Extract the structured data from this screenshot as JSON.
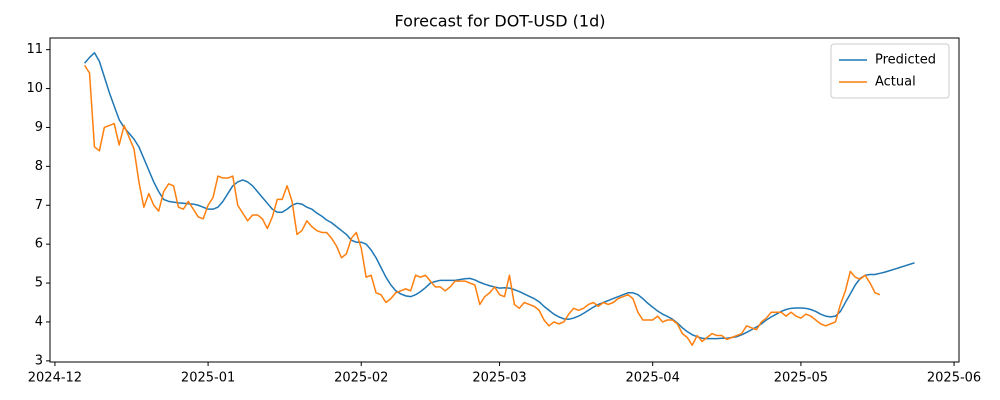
{
  "chart_data": {
    "type": "line",
    "title": "Forecast for DOT-USD (1d)",
    "x": [
      "2024-12-07",
      "2024-12-08",
      "2024-12-09",
      "2024-12-10",
      "2024-12-11",
      "2024-12-12",
      "2024-12-13",
      "2024-12-14",
      "2024-12-15",
      "2024-12-16",
      "2024-12-17",
      "2024-12-18",
      "2024-12-19",
      "2024-12-20",
      "2024-12-21",
      "2024-12-22",
      "2024-12-23",
      "2024-12-24",
      "2024-12-25",
      "2024-12-26",
      "2024-12-27",
      "2024-12-28",
      "2024-12-29",
      "2024-12-30",
      "2024-12-31",
      "2025-01-01",
      "2025-01-02",
      "2025-01-03",
      "2025-01-04",
      "2025-01-05",
      "2025-01-06",
      "2025-01-07",
      "2025-01-08",
      "2025-01-09",
      "2025-01-10",
      "2025-01-11",
      "2025-01-12",
      "2025-01-13",
      "2025-01-14",
      "2025-01-15",
      "2025-01-16",
      "2025-01-17",
      "2025-01-18",
      "2025-01-19",
      "2025-01-20",
      "2025-01-21",
      "2025-01-22",
      "2025-01-23",
      "2025-01-24",
      "2025-01-25",
      "2025-01-26",
      "2025-01-27",
      "2025-01-28",
      "2025-01-29",
      "2025-01-30",
      "2025-01-31",
      "2025-02-01",
      "2025-02-02",
      "2025-02-03",
      "2025-02-04",
      "2025-02-05",
      "2025-02-06",
      "2025-02-07",
      "2025-02-08",
      "2025-02-09",
      "2025-02-10",
      "2025-02-11",
      "2025-02-12",
      "2025-02-13",
      "2025-02-14",
      "2025-02-15",
      "2025-02-16",
      "2025-02-17",
      "2025-02-18",
      "2025-02-19",
      "2025-02-20",
      "2025-02-21",
      "2025-02-22",
      "2025-02-23",
      "2025-02-24",
      "2025-02-25",
      "2025-02-26",
      "2025-02-27",
      "2025-02-28",
      "2025-03-01",
      "2025-03-02",
      "2025-03-03",
      "2025-03-04",
      "2025-03-05",
      "2025-03-06",
      "2025-03-07",
      "2025-03-08",
      "2025-03-09",
      "2025-03-10",
      "2025-03-11",
      "2025-03-12",
      "2025-03-13",
      "2025-03-14",
      "2025-03-15",
      "2025-03-16",
      "2025-03-17",
      "2025-03-18",
      "2025-03-19",
      "2025-03-20",
      "2025-03-21",
      "2025-03-22",
      "2025-03-23",
      "2025-03-24",
      "2025-03-25",
      "2025-03-26",
      "2025-03-27",
      "2025-03-28",
      "2025-03-29",
      "2025-03-30",
      "2025-03-31",
      "2025-04-01",
      "2025-04-02",
      "2025-04-03",
      "2025-04-04",
      "2025-04-05",
      "2025-04-06",
      "2025-04-07",
      "2025-04-08",
      "2025-04-09",
      "2025-04-10",
      "2025-04-11",
      "2025-04-12",
      "2025-04-13",
      "2025-04-14",
      "2025-04-15",
      "2025-04-16",
      "2025-04-17",
      "2025-04-18",
      "2025-04-19",
      "2025-04-20",
      "2025-04-21",
      "2025-04-22",
      "2025-04-23",
      "2025-04-24",
      "2025-04-25",
      "2025-04-26",
      "2025-04-27",
      "2025-04-28",
      "2025-04-29",
      "2025-04-30",
      "2025-05-01",
      "2025-05-02",
      "2025-05-03",
      "2025-05-04",
      "2025-05-05",
      "2025-05-06",
      "2025-05-07",
      "2025-05-08",
      "2025-05-09",
      "2025-05-10",
      "2025-05-11",
      "2025-05-12",
      "2025-05-13",
      "2025-05-14",
      "2025-05-15",
      "2025-05-16",
      "2025-05-17",
      "2025-05-18",
      "2025-05-19",
      "2025-05-20",
      "2025-05-21",
      "2025-05-22",
      "2025-05-23",
      "2025-05-24"
    ],
    "series": [
      {
        "name": "Predicted",
        "color": "#1f77b4",
        "values": [
          10.65,
          10.8,
          10.92,
          10.7,
          10.3,
          9.9,
          9.55,
          9.2,
          9.0,
          8.85,
          8.7,
          8.5,
          8.2,
          7.9,
          7.6,
          7.35,
          7.15,
          7.1,
          7.08,
          7.06,
          7.05,
          7.04,
          7.03,
          7.0,
          6.95,
          6.9,
          6.9,
          6.95,
          7.1,
          7.3,
          7.5,
          7.6,
          7.65,
          7.6,
          7.5,
          7.35,
          7.2,
          7.05,
          6.9,
          6.82,
          6.82,
          6.9,
          7.0,
          7.05,
          7.03,
          6.95,
          6.9,
          6.8,
          6.72,
          6.62,
          6.55,
          6.45,
          6.35,
          6.25,
          6.1,
          6.05,
          6.05,
          6.0,
          5.85,
          5.65,
          5.4,
          5.15,
          4.95,
          4.8,
          4.72,
          4.67,
          4.65,
          4.7,
          4.78,
          4.88,
          5.0,
          5.04,
          5.07,
          5.07,
          5.07,
          5.07,
          5.09,
          5.11,
          5.12,
          5.08,
          5.02,
          4.97,
          4.93,
          4.9,
          4.87,
          4.88,
          4.87,
          4.83,
          4.78,
          4.72,
          4.66,
          4.6,
          4.52,
          4.4,
          4.3,
          4.2,
          4.13,
          4.08,
          4.07,
          4.1,
          4.15,
          4.22,
          4.3,
          4.38,
          4.45,
          4.5,
          4.55,
          4.6,
          4.65,
          4.7,
          4.75,
          4.75,
          4.7,
          4.6,
          4.48,
          4.38,
          4.28,
          4.2,
          4.14,
          4.07,
          3.97,
          3.85,
          3.75,
          3.67,
          3.62,
          3.58,
          3.57,
          3.57,
          3.57,
          3.58,
          3.58,
          3.6,
          3.62,
          3.67,
          3.73,
          3.8,
          3.87,
          3.95,
          4.05,
          4.13,
          4.2,
          4.27,
          4.32,
          4.35,
          4.36,
          4.36,
          4.35,
          4.32,
          4.27,
          4.2,
          4.15,
          4.13,
          4.15,
          4.27,
          4.5,
          4.72,
          4.95,
          5.12,
          5.2,
          5.22,
          5.22,
          5.25,
          5.28,
          5.32,
          5.36,
          5.4,
          5.44,
          5.48,
          5.52
        ]
      },
      {
        "name": "Actual",
        "color": "#ff7f0e",
        "values": [
          10.6,
          10.4,
          8.5,
          8.4,
          9.0,
          9.05,
          9.1,
          8.55,
          9.05,
          8.75,
          8.45,
          7.6,
          6.95,
          7.3,
          7.0,
          6.85,
          7.35,
          7.55,
          7.5,
          6.95,
          6.9,
          7.1,
          6.9,
          6.7,
          6.65,
          7.0,
          7.2,
          7.75,
          7.7,
          7.7,
          7.75,
          7.0,
          6.8,
          6.6,
          6.75,
          6.75,
          6.65,
          6.4,
          6.7,
          7.15,
          7.15,
          7.5,
          7.1,
          6.25,
          6.35,
          6.6,
          6.45,
          6.35,
          6.3,
          6.3,
          6.15,
          5.95,
          5.65,
          5.75,
          6.15,
          6.3,
          5.9,
          5.15,
          5.2,
          4.75,
          4.7,
          4.5,
          4.6,
          4.75,
          4.8,
          4.85,
          4.8,
          5.2,
          5.15,
          5.2,
          5.05,
          4.9,
          4.9,
          4.8,
          4.9,
          5.05,
          5.05,
          5.05,
          5.0,
          4.95,
          4.45,
          4.65,
          4.75,
          4.9,
          4.7,
          4.65,
          5.2,
          4.45,
          4.35,
          4.5,
          4.45,
          4.4,
          4.3,
          4.05,
          3.9,
          4.0,
          3.95,
          4.0,
          4.2,
          4.35,
          4.3,
          4.35,
          4.45,
          4.5,
          4.4,
          4.5,
          4.45,
          4.5,
          4.6,
          4.65,
          4.7,
          4.6,
          4.25,
          4.05,
          4.05,
          4.05,
          4.15,
          4.0,
          4.05,
          4.05,
          3.95,
          3.7,
          3.6,
          3.4,
          3.65,
          3.5,
          3.6,
          3.7,
          3.65,
          3.65,
          3.55,
          3.6,
          3.65,
          3.7,
          3.9,
          3.85,
          3.8,
          4.0,
          4.1,
          4.25,
          4.25,
          4.25,
          4.15,
          4.25,
          4.15,
          4.1,
          4.2,
          4.15,
          4.05,
          3.95,
          3.9,
          3.95,
          4.0,
          4.45,
          4.8,
          5.3,
          5.15,
          5.1,
          5.2,
          5.0,
          4.75,
          4.7,
          null,
          null,
          null,
          null,
          null,
          null,
          null
        ]
      }
    ],
    "xlim": [
      "2024-11-30",
      "2025-06-02"
    ],
    "xticks": [
      {
        "value": "2024-12-01",
        "label": "2024-12"
      },
      {
        "value": "2025-01-01",
        "label": "2025-01"
      },
      {
        "value": "2025-02-01",
        "label": "2025-02"
      },
      {
        "value": "2025-03-01",
        "label": "2025-03"
      },
      {
        "value": "2025-04-01",
        "label": "2025-04"
      },
      {
        "value": "2025-05-01",
        "label": "2025-05"
      },
      {
        "value": "2025-06-01",
        "label": "2025-06"
      }
    ],
    "ylim": [
      2.97,
      11.3
    ],
    "yticks": [
      3,
      4,
      5,
      6,
      7,
      8,
      9,
      10,
      11
    ],
    "legend": "upper right",
    "grid": false
  }
}
